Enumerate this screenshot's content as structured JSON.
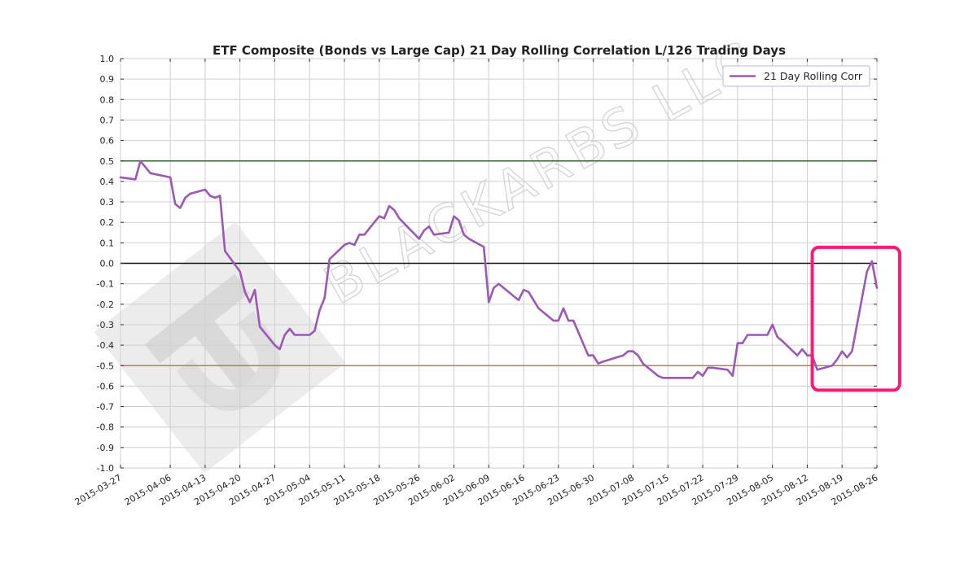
{
  "chart_data": {
    "type": "line",
    "title": "ETF Composite (Bonds vs Large Cap) 21 Day Rolling Correlation L/126 Trading Days",
    "xlabel": "",
    "ylabel": "",
    "ylim": [
      -1.0,
      1.0
    ],
    "yticks": [
      "1.0",
      "0.9",
      "0.8",
      "0.7",
      "0.6",
      "0.5",
      "0.4",
      "0.3",
      "0.2",
      "0.1",
      "0.0",
      "-0.1",
      "-0.2",
      "-0.3",
      "-0.4",
      "-0.5",
      "-0.6",
      "-0.7",
      "-0.8",
      "-0.9",
      "-1.0"
    ],
    "xlim": [
      "2015-03-27",
      "2015-08-26"
    ],
    "xticks": [
      "2015-03-27",
      "2015-04-06",
      "2015-04-13",
      "2015-04-20",
      "2015-04-27",
      "2015-05-04",
      "2015-05-11",
      "2015-05-18",
      "2015-05-26",
      "2015-06-02",
      "2015-06-09",
      "2015-06-16",
      "2015-06-23",
      "2015-06-30",
      "2015-07-08",
      "2015-07-15",
      "2015-07-22",
      "2015-07-29",
      "2015-08-05",
      "2015-08-12",
      "2015-08-19",
      "2015-08-26"
    ],
    "grid": true,
    "legend_position": "top-right",
    "series": [
      {
        "name": "21 Day Rolling Corr",
        "color": "#9b59b6",
        "x": [
          "2015-03-27",
          "2015-03-30",
          "2015-03-31",
          "2015-04-01",
          "2015-04-02",
          "2015-04-06",
          "2015-04-07",
          "2015-04-08",
          "2015-04-09",
          "2015-04-10",
          "2015-04-13",
          "2015-04-14",
          "2015-04-15",
          "2015-04-16",
          "2015-04-17",
          "2015-04-20",
          "2015-04-21",
          "2015-04-22",
          "2015-04-23",
          "2015-04-24",
          "2015-04-27",
          "2015-04-28",
          "2015-04-29",
          "2015-04-30",
          "2015-05-01",
          "2015-05-04",
          "2015-05-05",
          "2015-05-06",
          "2015-05-07",
          "2015-05-08",
          "2015-05-11",
          "2015-05-12",
          "2015-05-13",
          "2015-05-14",
          "2015-05-15",
          "2015-05-18",
          "2015-05-19",
          "2015-05-20",
          "2015-05-21",
          "2015-05-22",
          "2015-05-26",
          "2015-05-27",
          "2015-05-28",
          "2015-05-29",
          "2015-06-01",
          "2015-06-02",
          "2015-06-03",
          "2015-06-04",
          "2015-06-05",
          "2015-06-08",
          "2015-06-09",
          "2015-06-10",
          "2015-06-11",
          "2015-06-12",
          "2015-06-15",
          "2015-06-16",
          "2015-06-17",
          "2015-06-18",
          "2015-06-19",
          "2015-06-22",
          "2015-06-23",
          "2015-06-24",
          "2015-06-25",
          "2015-06-26",
          "2015-06-29",
          "2015-06-30",
          "2015-07-01",
          "2015-07-02",
          "2015-07-06",
          "2015-07-07",
          "2015-07-08",
          "2015-07-09",
          "2015-07-10",
          "2015-07-13",
          "2015-07-14",
          "2015-07-15",
          "2015-07-16",
          "2015-07-17",
          "2015-07-20",
          "2015-07-21",
          "2015-07-22",
          "2015-07-23",
          "2015-07-24",
          "2015-07-27",
          "2015-07-28",
          "2015-07-29",
          "2015-07-30",
          "2015-07-31",
          "2015-08-03",
          "2015-08-04",
          "2015-08-05",
          "2015-08-06",
          "2015-08-07",
          "2015-08-10",
          "2015-08-11",
          "2015-08-12",
          "2015-08-13",
          "2015-08-14",
          "2015-08-17",
          "2015-08-18",
          "2015-08-19",
          "2015-08-20",
          "2015-08-21",
          "2015-08-24",
          "2015-08-25",
          "2015-08-26"
        ],
        "values": [
          0.42,
          0.41,
          0.5,
          0.47,
          0.44,
          0.42,
          0.29,
          0.27,
          0.32,
          0.34,
          0.36,
          0.33,
          0.32,
          0.33,
          0.06,
          -0.04,
          -0.14,
          -0.19,
          -0.13,
          -0.31,
          -0.4,
          -0.42,
          -0.35,
          -0.32,
          -0.35,
          -0.35,
          -0.33,
          -0.23,
          -0.17,
          0.02,
          0.09,
          0.1,
          0.09,
          0.14,
          0.14,
          0.23,
          0.22,
          0.28,
          0.26,
          0.22,
          0.12,
          0.16,
          0.18,
          0.14,
          0.15,
          0.23,
          0.21,
          0.14,
          0.12,
          0.08,
          -0.19,
          -0.12,
          -0.1,
          -0.12,
          -0.18,
          -0.13,
          -0.14,
          -0.18,
          -0.22,
          -0.28,
          -0.28,
          -0.22,
          -0.28,
          -0.28,
          -0.45,
          -0.45,
          -0.49,
          -0.48,
          -0.45,
          -0.43,
          -0.43,
          -0.45,
          -0.49,
          -0.55,
          -0.56,
          -0.56,
          -0.56,
          -0.56,
          -0.56,
          -0.53,
          -0.55,
          -0.51,
          -0.51,
          -0.52,
          -0.55,
          -0.39,
          -0.39,
          -0.35,
          -0.35,
          -0.35,
          -0.3,
          -0.36,
          -0.38,
          -0.45,
          -0.42,
          -0.45,
          -0.45,
          -0.52,
          -0.5,
          -0.47,
          -0.43,
          -0.46,
          -0.43,
          -0.04,
          0.01,
          -0.12
        ]
      }
    ],
    "reference_lines": [
      {
        "y": 0.5,
        "color": "#2e6b2e"
      },
      {
        "y": 0.0,
        "color": "#111111"
      },
      {
        "y": -0.5,
        "color": "#d06f5e"
      }
    ],
    "highlight_box": {
      "x_start": "2015-08-13",
      "x_end": "2015-08-26",
      "y_low": -0.62,
      "y_high": 0.07,
      "color": "#ff1a75"
    },
    "watermark_text": "BLACKARBS LLC"
  }
}
